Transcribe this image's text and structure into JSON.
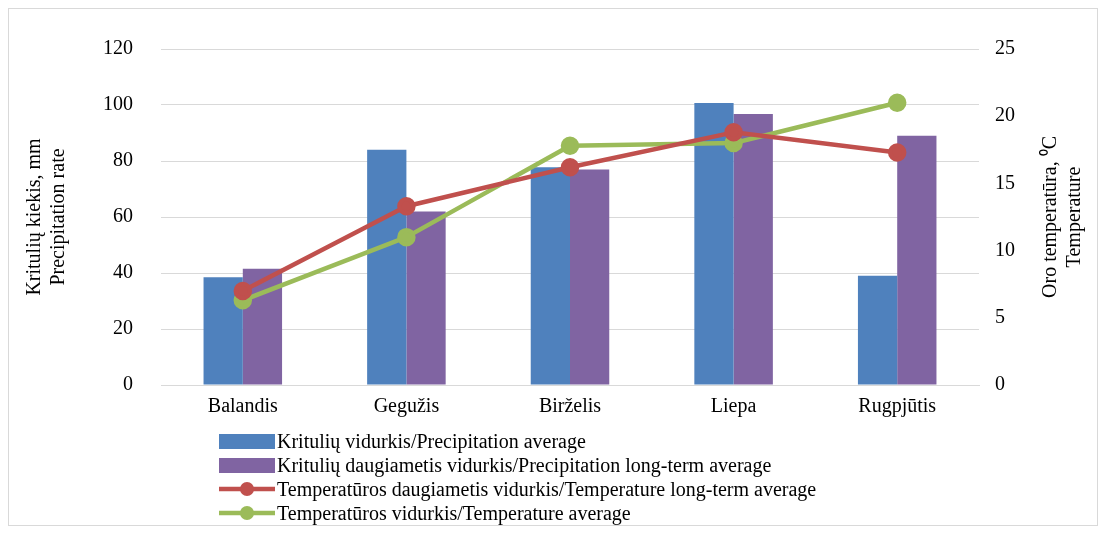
{
  "chart_data": {
    "type": "bar",
    "categories": [
      "Balandis",
      "Gegužis",
      "Birželis",
      "Liepa",
      "Rugpjūtis"
    ],
    "ylabel": "Kritulių kiekis, mm\nPrecipitation rate",
    "y2label": "Oro temperatūra, ⁰C\nTemperature",
    "ylim": [
      0,
      120
    ],
    "yticks": [
      0,
      20,
      40,
      60,
      80,
      100,
      120
    ],
    "y2lim": [
      0,
      25
    ],
    "y2ticks": [
      0,
      5,
      10,
      15,
      20,
      25
    ],
    "grid": "y",
    "legend": "bottom",
    "series": [
      {
        "name": "Kritulių vidurkis/Precipitation average",
        "color": "#4f81bd",
        "values": [
          38.5,
          84,
          77.8,
          100.7,
          39
        ]
      },
      {
        "name": "Kritulių daugiametis vidurkis/Precipitation long-term average",
        "color": "#8064a2",
        "values": [
          41.5,
          62,
          77,
          96.8,
          89
        ]
      },
      {
        "name": "Temperatūros daugiametis vidurkis/Temperature long-term average",
        "type": "line",
        "axis": "y2",
        "marker": "circle",
        "color": "#c0504d",
        "values": [
          7.0,
          13.3,
          16.2,
          18.8,
          17.3
        ]
      },
      {
        "name": "Temperatūros vidurkis/Temperature average",
        "type": "line",
        "axis": "y2",
        "marker": "circle",
        "color": "#9bbb59",
        "values": [
          6.3,
          11.0,
          17.8,
          18.0,
          21.0
        ]
      }
    ]
  }
}
